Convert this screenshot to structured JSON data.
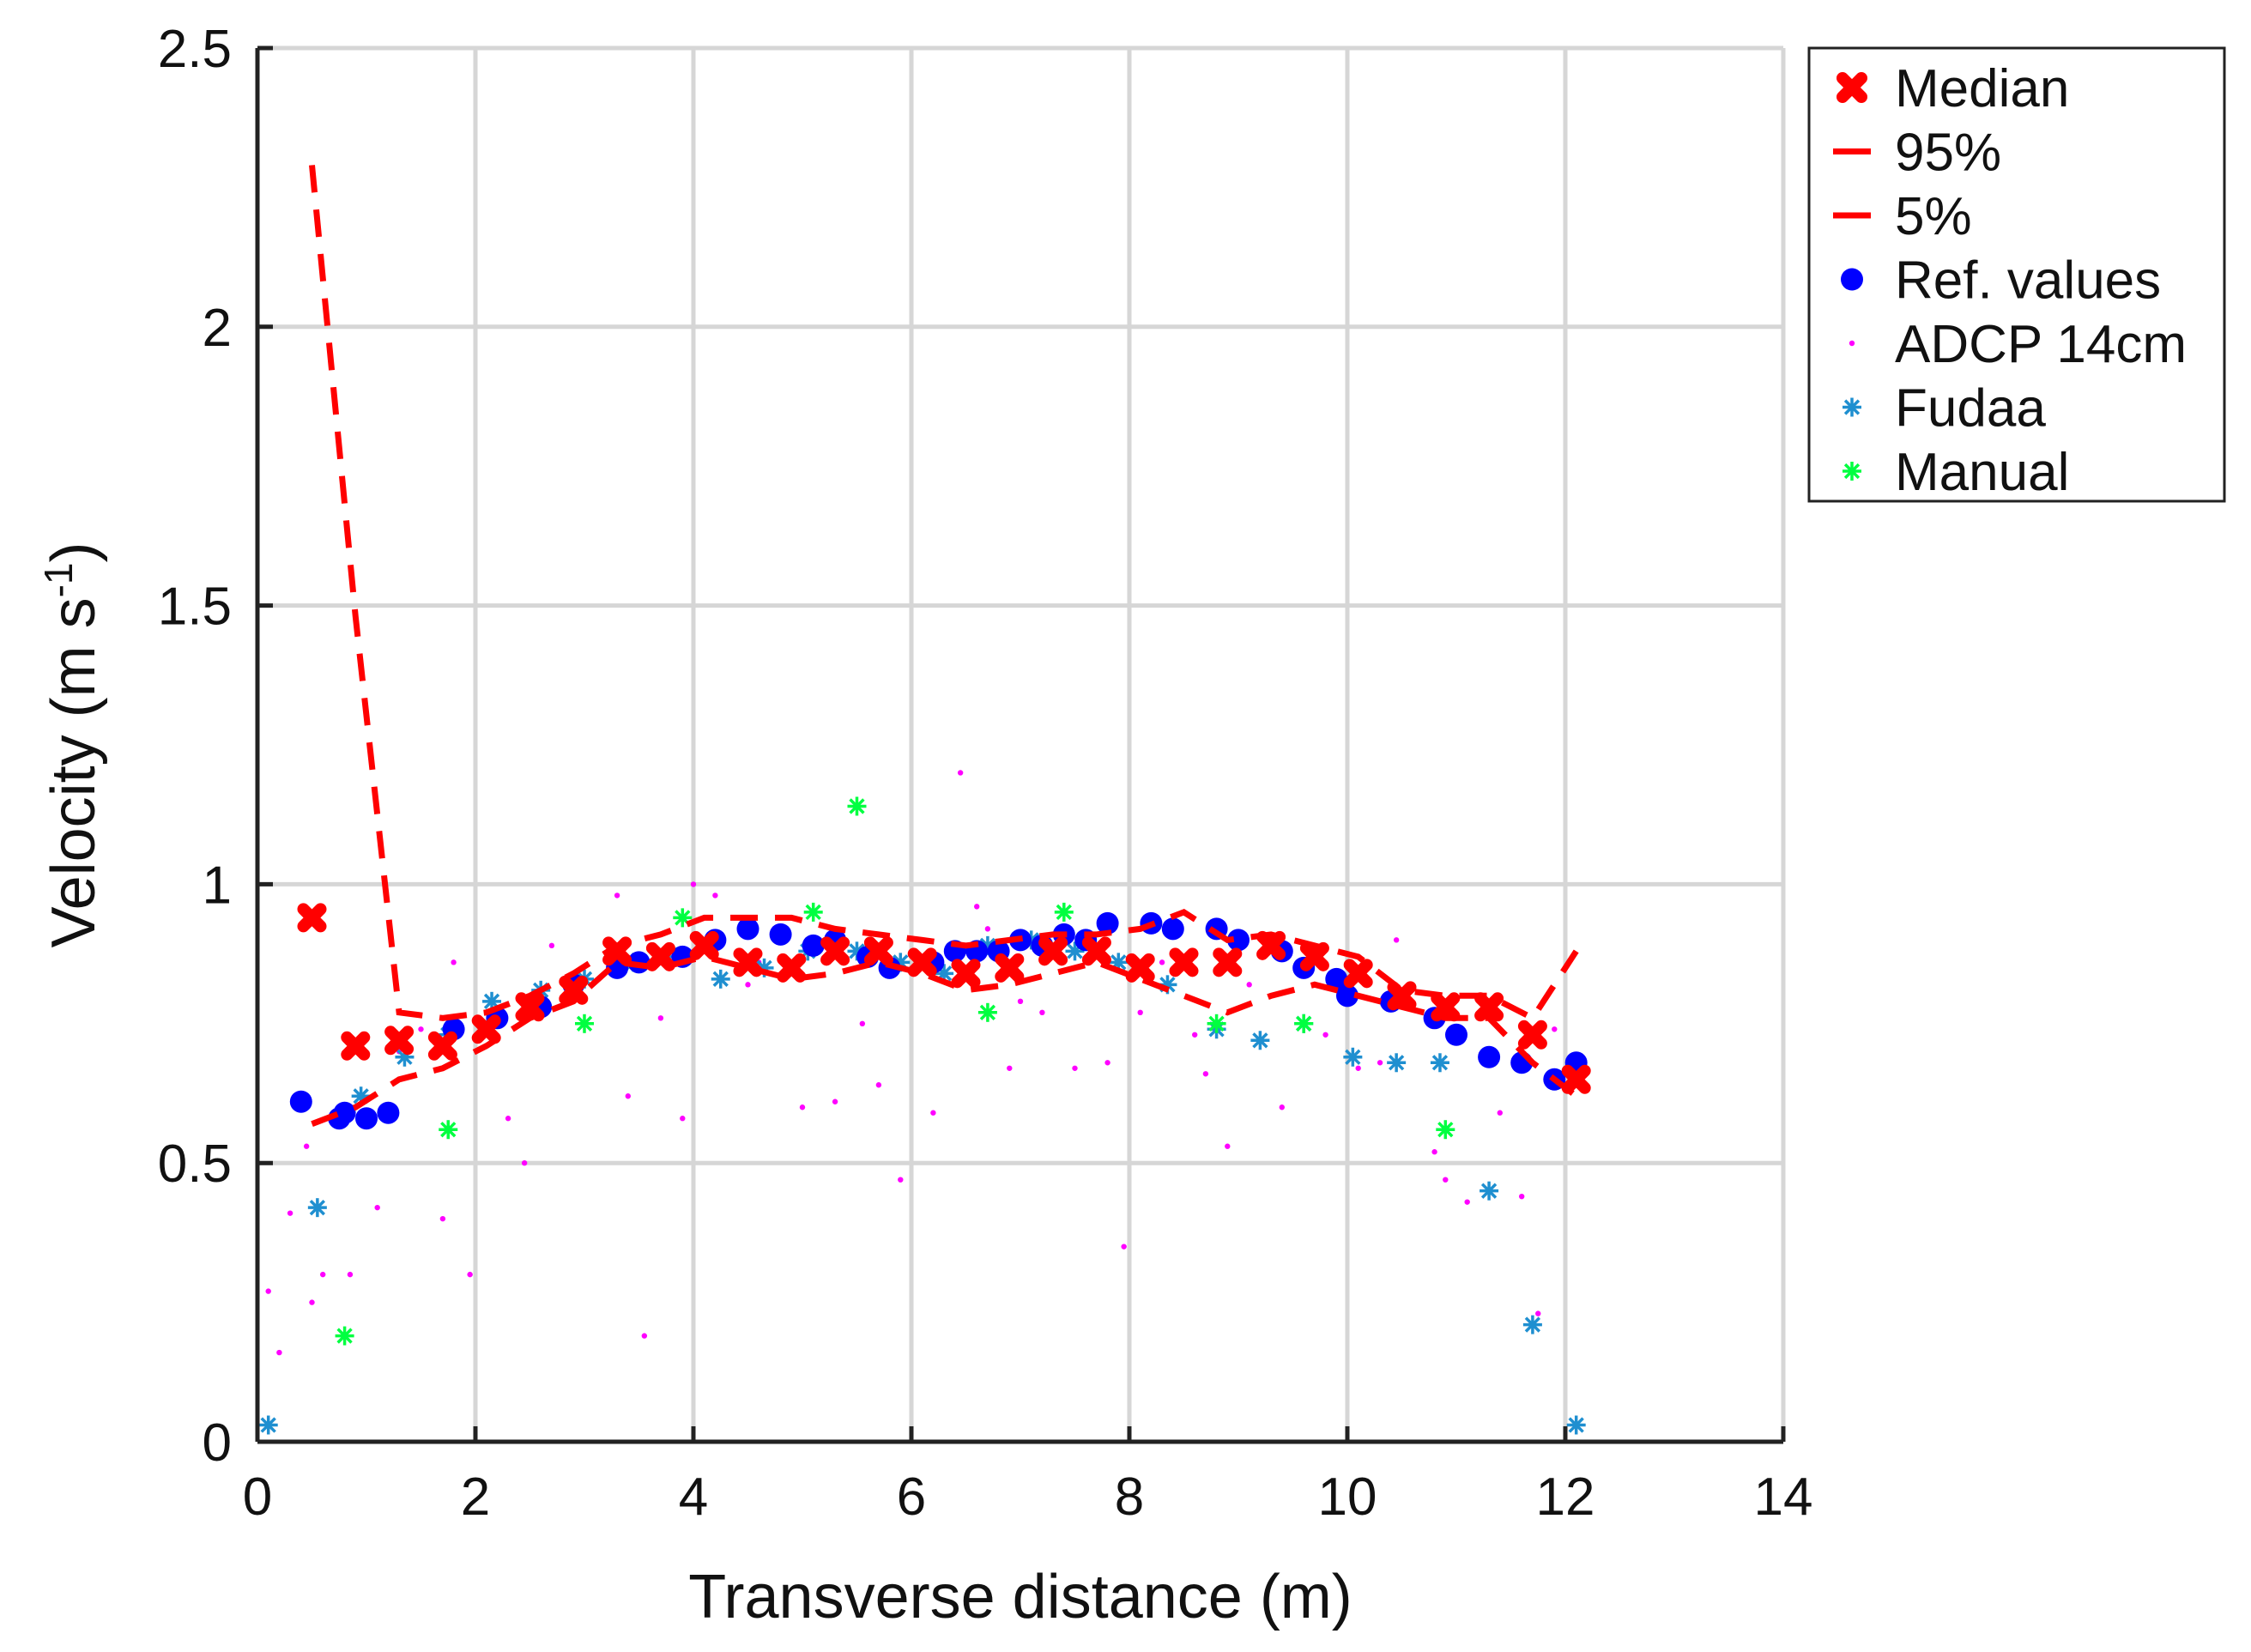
{
  "chart_data": {
    "type": "scatter",
    "title": "",
    "xlabel": "Transverse distance (m)",
    "ylabel_main": "Velocity (m s",
    "ylabel_sup": "-1",
    "ylabel_close": ")",
    "xlim": [
      0,
      14
    ],
    "ylim": [
      0,
      2.5
    ],
    "xticks": [
      "0",
      "2",
      "4",
      "6",
      "8",
      "10",
      "12",
      "14"
    ],
    "yticks": [
      "0",
      "0.5",
      "1",
      "1.5",
      "2",
      "2.5"
    ],
    "grid": true,
    "legend_position": "outside-top-right",
    "colors": {
      "median": "#ff0000",
      "p95": "#ff0000",
      "p5": "#ff0000",
      "ref": "#0000ff",
      "adcp": "#ff00ff",
      "fudaa": "#1f8fd0",
      "manual": "#00ff40"
    },
    "series": [
      {
        "key": "median",
        "name": "Median",
        "style": "cross",
        "points": [
          [
            0.5,
            0.94
          ],
          [
            0.9,
            0.71
          ],
          [
            1.3,
            0.72
          ],
          [
            1.7,
            0.71
          ],
          [
            2.1,
            0.74
          ],
          [
            2.5,
            0.78
          ],
          [
            2.9,
            0.81
          ],
          [
            3.3,
            0.88
          ],
          [
            3.7,
            0.87
          ],
          [
            4.1,
            0.89
          ],
          [
            4.5,
            0.86
          ],
          [
            4.9,
            0.85
          ],
          [
            5.3,
            0.88
          ],
          [
            5.7,
            0.88
          ],
          [
            6.1,
            0.86
          ],
          [
            6.5,
            0.84
          ],
          [
            6.9,
            0.85
          ],
          [
            7.3,
            0.88
          ],
          [
            7.7,
            0.88
          ],
          [
            8.1,
            0.85
          ],
          [
            8.5,
            0.86
          ],
          [
            8.9,
            0.86
          ],
          [
            9.3,
            0.89
          ],
          [
            9.7,
            0.87
          ],
          [
            10.1,
            0.84
          ],
          [
            10.5,
            0.8
          ],
          [
            10.9,
            0.78
          ],
          [
            11.3,
            0.78
          ],
          [
            11.7,
            0.73
          ],
          [
            12.1,
            0.65
          ]
        ]
      },
      {
        "key": "p95",
        "name": "95%",
        "style": "dashed",
        "points": [
          [
            0.5,
            2.29
          ],
          [
            0.9,
            1.48
          ],
          [
            1.3,
            0.77
          ],
          [
            1.7,
            0.76
          ],
          [
            2.1,
            0.77
          ],
          [
            2.5,
            0.8
          ],
          [
            2.9,
            0.84
          ],
          [
            3.3,
            0.89
          ],
          [
            3.7,
            0.91
          ],
          [
            4.1,
            0.94
          ],
          [
            4.5,
            0.94
          ],
          [
            4.9,
            0.94
          ],
          [
            5.3,
            0.92
          ],
          [
            5.7,
            0.91
          ],
          [
            6.1,
            0.9
          ],
          [
            6.5,
            0.89
          ],
          [
            6.9,
            0.9
          ],
          [
            7.3,
            0.91
          ],
          [
            7.7,
            0.91
          ],
          [
            8.1,
            0.92
          ],
          [
            8.5,
            0.95
          ],
          [
            8.9,
            0.9
          ],
          [
            9.3,
            0.91
          ],
          [
            9.7,
            0.89
          ],
          [
            10.1,
            0.87
          ],
          [
            10.5,
            0.81
          ],
          [
            10.9,
            0.8
          ],
          [
            11.3,
            0.8
          ],
          [
            11.7,
            0.76
          ],
          [
            12.1,
            0.88
          ]
        ]
      },
      {
        "key": "p5",
        "name": "5%",
        "style": "dashed",
        "points": [
          [
            0.5,
            0.57
          ],
          [
            0.9,
            0.6
          ],
          [
            1.3,
            0.65
          ],
          [
            1.7,
            0.67
          ],
          [
            2.1,
            0.71
          ],
          [
            2.5,
            0.76
          ],
          [
            2.9,
            0.79
          ],
          [
            3.3,
            0.86
          ],
          [
            3.7,
            0.85
          ],
          [
            4.1,
            0.87
          ],
          [
            4.5,
            0.85
          ],
          [
            4.9,
            0.83
          ],
          [
            5.3,
            0.84
          ],
          [
            5.7,
            0.86
          ],
          [
            6.1,
            0.84
          ],
          [
            6.5,
            0.81
          ],
          [
            6.9,
            0.82
          ],
          [
            7.3,
            0.84
          ],
          [
            7.7,
            0.86
          ],
          [
            8.1,
            0.83
          ],
          [
            8.5,
            0.8
          ],
          [
            8.9,
            0.77
          ],
          [
            9.3,
            0.8
          ],
          [
            9.7,
            0.82
          ],
          [
            10.1,
            0.8
          ],
          [
            10.5,
            0.78
          ],
          [
            10.9,
            0.76
          ],
          [
            11.3,
            0.76
          ],
          [
            11.7,
            0.68
          ],
          [
            12.1,
            0.62
          ]
        ]
      },
      {
        "key": "ref",
        "name": "Ref. values",
        "style": "dot",
        "points": [
          [
            0.4,
            0.61
          ],
          [
            0.75,
            0.58
          ],
          [
            0.8,
            0.59
          ],
          [
            1.0,
            0.58
          ],
          [
            1.2,
            0.59
          ],
          [
            1.8,
            0.74
          ],
          [
            2.2,
            0.76
          ],
          [
            2.6,
            0.78
          ],
          [
            2.9,
            0.82
          ],
          [
            3.3,
            0.85
          ],
          [
            3.5,
            0.86
          ],
          [
            3.9,
            0.87
          ],
          [
            4.2,
            0.9
          ],
          [
            4.5,
            0.92
          ],
          [
            4.8,
            0.91
          ],
          [
            5.1,
            0.89
          ],
          [
            5.3,
            0.9
          ],
          [
            5.6,
            0.87
          ],
          [
            5.8,
            0.85
          ],
          [
            6.2,
            0.86
          ],
          [
            6.4,
            0.88
          ],
          [
            6.6,
            0.88
          ],
          [
            6.8,
            0.88
          ],
          [
            7.0,
            0.9
          ],
          [
            7.2,
            0.89
          ],
          [
            7.4,
            0.91
          ],
          [
            7.6,
            0.9
          ],
          [
            7.8,
            0.93
          ],
          [
            8.2,
            0.93
          ],
          [
            8.4,
            0.92
          ],
          [
            8.8,
            0.92
          ],
          [
            9.0,
            0.9
          ],
          [
            9.4,
            0.88
          ],
          [
            9.6,
            0.85
          ],
          [
            9.9,
            0.83
          ],
          [
            10.0,
            0.8
          ],
          [
            10.4,
            0.79
          ],
          [
            10.8,
            0.76
          ],
          [
            11.0,
            0.73
          ],
          [
            11.3,
            0.69
          ],
          [
            11.6,
            0.68
          ],
          [
            11.9,
            0.65
          ],
          [
            12.1,
            0.68
          ]
        ]
      },
      {
        "key": "adcp",
        "name": "ADCP 14cm",
        "style": "pixel",
        "points": [
          [
            0.1,
            0.27
          ],
          [
            0.2,
            0.16
          ],
          [
            0.3,
            0.41
          ],
          [
            0.45,
            0.53
          ],
          [
            0.5,
            0.25
          ],
          [
            0.6,
            0.3
          ],
          [
            0.85,
            0.3
          ],
          [
            1.1,
            0.42
          ],
          [
            1.3,
            0.7
          ],
          [
            1.5,
            0.74
          ],
          [
            1.7,
            0.4
          ],
          [
            1.8,
            0.86
          ],
          [
            1.95,
            0.3
          ],
          [
            2.3,
            0.58
          ],
          [
            2.45,
            0.5
          ],
          [
            2.7,
            0.89
          ],
          [
            3.3,
            0.98
          ],
          [
            3.4,
            0.62
          ],
          [
            3.55,
            0.19
          ],
          [
            3.7,
            0.76
          ],
          [
            3.9,
            0.58
          ],
          [
            4.0,
            1.0
          ],
          [
            4.2,
            0.98
          ],
          [
            4.5,
            0.82
          ],
          [
            4.6,
            0.86
          ],
          [
            5.0,
            0.6
          ],
          [
            5.3,
            0.61
          ],
          [
            5.55,
            0.75
          ],
          [
            5.7,
            0.64
          ],
          [
            5.9,
            0.47
          ],
          [
            6.2,
            0.59
          ],
          [
            6.45,
            1.2
          ],
          [
            6.6,
            0.96
          ],
          [
            6.7,
            0.92
          ],
          [
            6.9,
            0.67
          ],
          [
            7.0,
            0.79
          ],
          [
            7.2,
            0.77
          ],
          [
            7.5,
            0.67
          ],
          [
            7.8,
            0.68
          ],
          [
            7.95,
            0.35
          ],
          [
            8.1,
            0.77
          ],
          [
            8.3,
            0.86
          ],
          [
            8.6,
            0.73
          ],
          [
            8.7,
            0.66
          ],
          [
            8.9,
            0.53
          ],
          [
            9.1,
            0.82
          ],
          [
            9.4,
            0.6
          ],
          [
            9.8,
            0.73
          ],
          [
            10.1,
            0.67
          ],
          [
            10.3,
            0.68
          ],
          [
            10.5,
            0.78
          ],
          [
            10.45,
            0.9
          ],
          [
            10.8,
            0.52
          ],
          [
            10.9,
            0.47
          ],
          [
            11.1,
            0.43
          ],
          [
            11.4,
            0.59
          ],
          [
            11.6,
            0.44
          ],
          [
            11.75,
            0.23
          ],
          [
            11.9,
            0.74
          ],
          [
            12.1,
            0.66
          ]
        ]
      },
      {
        "key": "fudaa",
        "name": "Fudaa",
        "style": "star",
        "points": [
          [
            0.1,
            0.03
          ],
          [
            0.55,
            0.42
          ],
          [
            0.95,
            0.62
          ],
          [
            1.35,
            0.69
          ],
          [
            1.75,
            0.73
          ],
          [
            2.15,
            0.79
          ],
          [
            2.6,
            0.81
          ],
          [
            3.0,
            0.83
          ],
          [
            3.45,
            0.86
          ],
          [
            3.85,
            0.87
          ],
          [
            4.25,
            0.83
          ],
          [
            4.65,
            0.85
          ],
          [
            5.05,
            0.88
          ],
          [
            5.5,
            0.88
          ],
          [
            5.9,
            0.86
          ],
          [
            6.3,
            0.84
          ],
          [
            6.7,
            0.89
          ],
          [
            7.1,
            0.9
          ],
          [
            7.5,
            0.88
          ],
          [
            7.9,
            0.86
          ],
          [
            8.35,
            0.82
          ],
          [
            8.8,
            0.74
          ],
          [
            9.2,
            0.72
          ],
          [
            9.6,
            0.75
          ],
          [
            10.05,
            0.69
          ],
          [
            10.45,
            0.68
          ],
          [
            10.85,
            0.68
          ],
          [
            11.3,
            0.45
          ],
          [
            11.7,
            0.21
          ],
          [
            12.1,
            0.03
          ]
        ]
      },
      {
        "key": "manual",
        "name": "Manual",
        "style": "star",
        "points": [
          [
            0.8,
            0.19
          ],
          [
            1.75,
            0.56
          ],
          [
            3.0,
            0.75
          ],
          [
            3.9,
            0.94
          ],
          [
            5.1,
            0.95
          ],
          [
            5.5,
            1.14
          ],
          [
            6.7,
            0.77
          ],
          [
            7.4,
            0.95
          ],
          [
            8.8,
            0.75
          ],
          [
            9.6,
            0.75
          ],
          [
            10.9,
            0.56
          ]
        ]
      }
    ]
  }
}
